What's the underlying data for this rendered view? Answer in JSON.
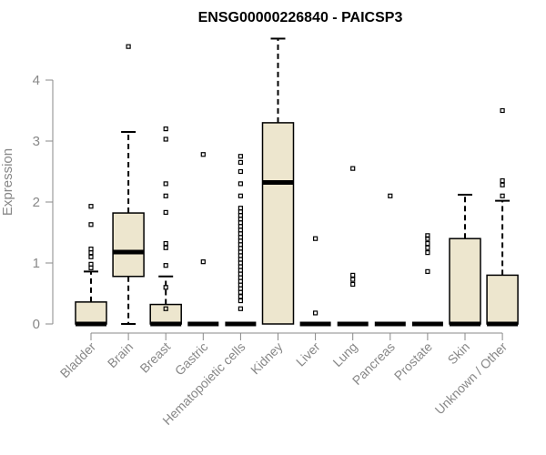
{
  "chart_data": {
    "type": "box",
    "title": "ENSG00000226840 - PAICSP3",
    "xlabel": "",
    "ylabel": "Expression",
    "ylim": [
      0,
      4.7
    ],
    "yticks": [
      "0",
      "1",
      "2",
      "3",
      "4"
    ],
    "box_fill": "#EDE6CE",
    "categories": [
      "Bladder",
      "Brain",
      "Breast",
      "Gastric",
      "Hematopoietic cells",
      "Kidney",
      "Liver",
      "Lung",
      "Pancreas",
      "Prostate",
      "Skin",
      "Unknown / Other"
    ],
    "series": [
      {
        "category": "Bladder",
        "q1": 0,
        "median": 0,
        "q3": 0.36,
        "whisker_low": 0,
        "whisker_high": 0.86,
        "outliers": [
          0.92,
          0.98,
          1.1,
          1.17,
          1.23,
          1.63,
          1.93
        ]
      },
      {
        "category": "Brain",
        "q1": 0.78,
        "median": 1.18,
        "q3": 1.82,
        "whisker_low": 0,
        "whisker_high": 3.15,
        "outliers": [
          4.55
        ]
      },
      {
        "category": "Breast",
        "q1": 0,
        "median": 0,
        "q3": 0.32,
        "whisker_low": 0,
        "whisker_high": 0.78,
        "outliers": [
          0.25,
          0.6,
          0.96,
          1.25,
          1.32,
          1.83,
          2.1,
          2.3,
          3.03,
          3.2
        ]
      },
      {
        "category": "Gastric",
        "q1": 0,
        "median": 0,
        "q3": 0,
        "whisker_low": 0,
        "whisker_high": 0,
        "outliers": [
          1.02,
          2.78
        ]
      },
      {
        "category": "Hematopoietic cells",
        "q1": 0,
        "median": 0,
        "q3": 0,
        "whisker_low": 0,
        "whisker_high": 0,
        "outliers": [
          0.25,
          0.38,
          0.45,
          0.52,
          0.58,
          0.64,
          0.7,
          0.76,
          0.82,
          0.88,
          0.94,
          1.0,
          1.06,
          1.12,
          1.18,
          1.24,
          1.3,
          1.36,
          1.42,
          1.48,
          1.54,
          1.6,
          1.66,
          1.72,
          1.78,
          1.84,
          1.9,
          2.1,
          2.3,
          2.5,
          2.65,
          2.75
        ]
      },
      {
        "category": "Kidney",
        "q1": 0,
        "median": 2.32,
        "q3": 3.3,
        "whisker_low": 0,
        "whisker_high": 4.68,
        "outliers": []
      },
      {
        "category": "Liver",
        "q1": 0,
        "median": 0,
        "q3": 0,
        "whisker_low": 0,
        "whisker_high": 0,
        "outliers": [
          0.18,
          1.4
        ]
      },
      {
        "category": "Lung",
        "q1": 0,
        "median": 0,
        "q3": 0,
        "whisker_low": 0,
        "whisker_high": 0,
        "outliers": [
          0.65,
          0.73,
          0.8,
          2.55
        ]
      },
      {
        "category": "Pancreas",
        "q1": 0,
        "median": 0,
        "q3": 0,
        "whisker_low": 0,
        "whisker_high": 0,
        "outliers": [
          2.1
        ]
      },
      {
        "category": "Prostate",
        "q1": 0,
        "median": 0,
        "q3": 0,
        "whisker_low": 0,
        "whisker_high": 0,
        "outliers": [
          0.86,
          1.17,
          1.25,
          1.32,
          1.4,
          1.45
        ]
      },
      {
        "category": "Skin",
        "q1": 0,
        "median": 0,
        "q3": 1.4,
        "whisker_low": 0,
        "whisker_high": 2.12,
        "outliers": []
      },
      {
        "category": "Unknown / Other",
        "q1": 0,
        "median": 0,
        "q3": 0.8,
        "whisker_low": 0,
        "whisker_high": 2.02,
        "outliers": [
          2.1,
          2.28,
          2.35,
          3.5
        ]
      }
    ]
  }
}
